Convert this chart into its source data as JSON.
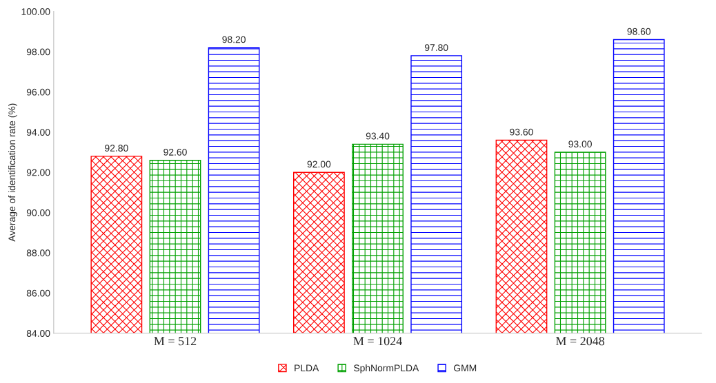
{
  "chart_data": {
    "type": "bar",
    "ylabel": "Average of identification rate (%)",
    "categories": [
      "M = 512",
      "M = 1024",
      "M = 2048"
    ],
    "series": [
      {
        "name": "PLDA",
        "color": "#ff0000",
        "values": [
          92.8,
          92.0,
          93.6
        ],
        "value_labels": [
          "92.80",
          "92.00",
          "93.60"
        ]
      },
      {
        "name": "SphNormPLDA",
        "color": "#00a000",
        "values": [
          92.6,
          93.4,
          93.0
        ],
        "value_labels": [
          "92.60",
          "93.40",
          "93.00"
        ]
      },
      {
        "name": "GMM",
        "color": "#0000ff",
        "values": [
          98.2,
          97.8,
          98.6
        ],
        "value_labels": [
          "98.20",
          "97.80",
          "98.60"
        ]
      }
    ],
    "ylim": [
      84,
      100
    ],
    "yticks": [
      {
        "value": 84,
        "label": "84.00"
      },
      {
        "value": 86,
        "label": "86.00"
      },
      {
        "value": 88,
        "label": "88.00"
      },
      {
        "value": 90,
        "label": "90.00"
      },
      {
        "value": 92,
        "label": "92.00"
      },
      {
        "value": 94,
        "label": "94.00"
      },
      {
        "value": 96,
        "label": "96.00"
      },
      {
        "value": 98,
        "label": "98.00"
      },
      {
        "value": 100,
        "label": "100.00"
      }
    ],
    "grid": false,
    "legend": "bottom"
  }
}
